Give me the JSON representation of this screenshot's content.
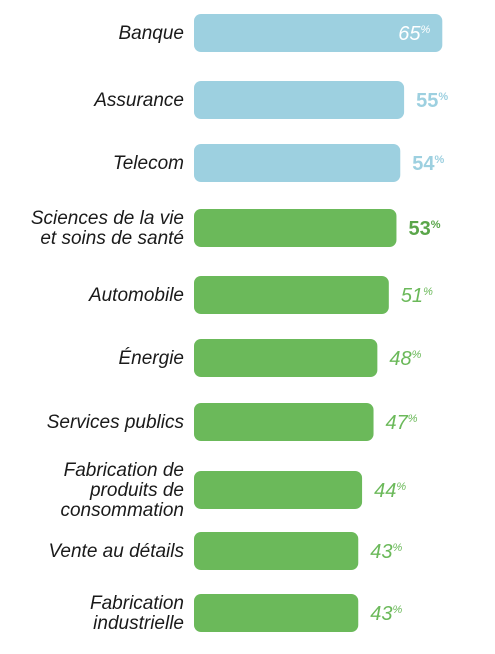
{
  "chart_data": {
    "type": "bar",
    "orientation": "horizontal",
    "categories": [
      "Banque",
      "Assurance",
      "Telecom",
      "Sciences de la vie\net soins de santé",
      "Automobile",
      "Énergie",
      "Services publics",
      "Fabrication de\nproduits de\nconsommation",
      "Vente au détails",
      "Fabrication\nindustrielle"
    ],
    "values": [
      65,
      55,
      54,
      53,
      51,
      48,
      47,
      44,
      43,
      43
    ],
    "value_labels": [
      "65%",
      "55%",
      "54%",
      "53%",
      "51%",
      "48%",
      "47%",
      "44%",
      "43%",
      "43%"
    ],
    "value_label_styles": [
      "inside",
      "bold",
      "bold",
      "bold",
      "italic",
      "italic",
      "italic",
      "italic",
      "italic",
      "italic"
    ],
    "bar_colors": [
      "#9dd0e0",
      "#9dd0e0",
      "#9dd0e0",
      "#6bb95a",
      "#6bb95a",
      "#6bb95a",
      "#6bb95a",
      "#6bb95a",
      "#6bb95a",
      "#6bb95a"
    ],
    "label_colors": [
      "#ffffff",
      "#9dd0e0",
      "#9dd0e0",
      "#5aa64a",
      "#6bb95a",
      "#6bb95a",
      "#6bb95a",
      "#6bb95a",
      "#6bb95a",
      "#6bb95a"
    ],
    "title": "",
    "xlabel": "",
    "ylabel": "",
    "grid": false,
    "legend": "none"
  }
}
